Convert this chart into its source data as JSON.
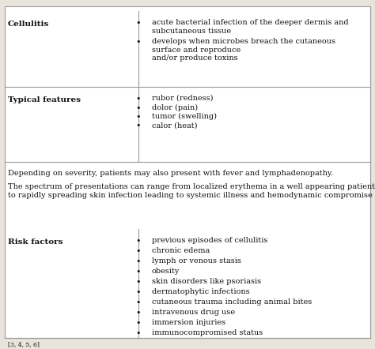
{
  "bg_color": "#e8e4dc",
  "box_color": "#ffffff",
  "border_color": "#999999",
  "text_color": "#111111",
  "font_size": 7.0,
  "bold_size": 7.5,
  "small_size": 5.5,
  "sections": [
    {
      "label": "Cellulitis",
      "bullet_lines": [
        [
          "acute bacterial infection of the deeper dermis and",
          "subcutaneous tissue"
        ],
        [
          "develops when microbes breach the cutaneous",
          "surface and reproduce",
          "and/or produce toxins"
        ]
      ]
    },
    {
      "label": "Typical features",
      "bullet_lines": [
        [
          "rubor (redness)"
        ],
        [
          "dolor (pain)"
        ],
        [
          "tumor (swelling)"
        ],
        [
          "calor (heat)"
        ]
      ]
    }
  ],
  "paragraph1": "Depending on severity, patients may also present with fever and lymphadenopathy.",
  "paragraph2": "The spectrum of presentations can range from localized erythema in a well appearing patient",
  "paragraph2b": "to rapidly spreading skin infection leading to systemic illness and hemodynamic compromise",
  "risk_section": {
    "label": "Risk factors",
    "bullet_lines": [
      [
        "previous episodes of cellulitis"
      ],
      [
        "chronic edema"
      ],
      [
        "lymph or venous stasis"
      ],
      [
        "obesity"
      ],
      [
        "skin disorders like psoriasis"
      ],
      [
        "dermatophytic infections"
      ],
      [
        "cutaneous trauma including animal bites"
      ],
      [
        "intravenous drug use"
      ],
      [
        "immersion injuries"
      ],
      [
        "immunocompromised status"
      ]
    ]
  },
  "footnote": "[3, 4, 5, 6]"
}
